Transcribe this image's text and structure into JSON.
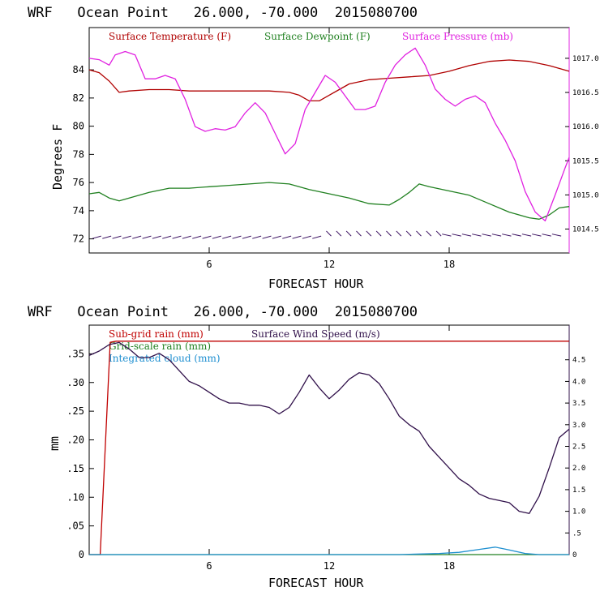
{
  "colors": {
    "temperature": "#b00000",
    "dewpoint": "#208020",
    "pressure": "#e020e0",
    "subgrid_rain": "#c00000",
    "gridscale_rain": "#208020",
    "cloud": "#1e8fd0",
    "wind": "#30104a",
    "barbs": "#3a1060"
  },
  "chart_data": [
    {
      "type": "line",
      "title": "WRF   Ocean Point   26.000, -70.000  2015080700",
      "xlabel": "FORECAST HOUR",
      "ylabel": "Degrees F",
      "xlim": [
        0,
        24
      ],
      "ylim": [
        71,
        87
      ],
      "xticks": [
        6,
        12,
        18
      ],
      "xtick_labels": [
        "6",
        "12",
        "18"
      ],
      "yticks": [
        72,
        74,
        76,
        78,
        80,
        82,
        84
      ],
      "ytick_labels": [
        "72",
        "74",
        "76",
        "78",
        "80",
        "82",
        "84"
      ],
      "y2lim": [
        1014.15,
        1017.45
      ],
      "y2ticks": [
        1014.5,
        1015.0,
        1015.5,
        1016.0,
        1016.5,
        1017.0
      ],
      "y2tick_labels": [
        "1014.5",
        "1015.0",
        "1015.5",
        "1016.0",
        "1016.5",
        "1017.0"
      ],
      "legend_position": "top",
      "series": [
        {
          "key": "temperature",
          "name": "Surface Temperature (F)",
          "axis": "left",
          "x": [
            0,
            0.5,
            1.0,
            1.5,
            2.0,
            3.0,
            4.0,
            5.0,
            6.0,
            7.0,
            8.0,
            9.0,
            10.0,
            10.5,
            11.0,
            11.5,
            12.0,
            12.5,
            13.0,
            14.0,
            15.0,
            16.0,
            17.0,
            18.0,
            19.0,
            20.0,
            21.0,
            22.0,
            23.0,
            24.0
          ],
          "y": [
            84.0,
            83.8,
            83.2,
            82.4,
            82.5,
            82.6,
            82.6,
            82.5,
            82.5,
            82.5,
            82.5,
            82.5,
            82.4,
            82.2,
            81.8,
            81.8,
            82.2,
            82.6,
            83.0,
            83.3,
            83.4,
            83.5,
            83.6,
            83.9,
            84.3,
            84.6,
            84.7,
            84.6,
            84.3,
            83.9
          ]
        },
        {
          "key": "dewpoint",
          "name": "Surface Dewpoint (F)",
          "axis": "left",
          "x": [
            0,
            0.5,
            1.0,
            1.5,
            2.0,
            3.0,
            4.0,
            5.0,
            6.0,
            7.0,
            8.0,
            9.0,
            10.0,
            11.0,
            12.0,
            13.0,
            14.0,
            15.0,
            15.5,
            16.0,
            16.5,
            17.0,
            18.0,
            19.0,
            20.0,
            21.0,
            22.0,
            22.5,
            23.0,
            23.5,
            24.0
          ],
          "y": [
            75.2,
            75.3,
            74.9,
            74.7,
            74.9,
            75.3,
            75.6,
            75.6,
            75.7,
            75.8,
            75.9,
            76.0,
            75.9,
            75.5,
            75.2,
            74.9,
            74.5,
            74.4,
            74.8,
            75.3,
            75.9,
            75.7,
            75.4,
            75.1,
            74.5,
            73.9,
            73.5,
            73.4,
            73.7,
            74.2,
            74.3
          ]
        },
        {
          "key": "pressure",
          "name": "Surface Pressure (mb)",
          "axis": "right",
          "x": [
            0,
            0.5,
            1.0,
            1.3,
            1.8,
            2.3,
            2.8,
            3.3,
            3.8,
            4.3,
            4.8,
            5.3,
            5.8,
            6.3,
            6.8,
            7.3,
            7.8,
            8.3,
            8.8,
            9.3,
            9.8,
            10.3,
            10.8,
            11.3,
            11.8,
            12.3,
            12.8,
            13.3,
            13.8,
            14.3,
            14.8,
            15.3,
            15.8,
            16.3,
            16.8,
            17.3,
            17.8,
            18.3,
            18.8,
            19.3,
            19.8,
            20.3,
            20.8,
            21.3,
            21.8,
            22.3,
            22.8,
            23.3,
            23.8,
            24.0
          ],
          "y": [
            1017.0,
            1016.98,
            1016.9,
            1017.05,
            1017.1,
            1017.05,
            1016.7,
            1016.7,
            1016.75,
            1016.7,
            1016.4,
            1016.0,
            1015.93,
            1015.97,
            1015.95,
            1016.0,
            1016.2,
            1016.35,
            1016.2,
            1015.9,
            1015.6,
            1015.75,
            1016.25,
            1016.5,
            1016.75,
            1016.65,
            1016.45,
            1016.25,
            1016.25,
            1016.3,
            1016.65,
            1016.9,
            1017.05,
            1017.15,
            1016.9,
            1016.55,
            1016.4,
            1016.3,
            1016.4,
            1016.45,
            1016.35,
            1016.05,
            1015.8,
            1015.5,
            1015.05,
            1014.75,
            1014.62,
            1015.0,
            1015.4,
            1015.55
          ]
        }
      ],
      "wind_barbs_y": 72.2
    },
    {
      "type": "line",
      "title": "WRF   Ocean Point   26.000, -70.000  2015080700",
      "xlabel": "FORECAST HOUR",
      "ylabel": "mm",
      "xlim": [
        0,
        24
      ],
      "ylim": [
        0,
        0.4
      ],
      "xticks": [
        6,
        12,
        18
      ],
      "xtick_labels": [
        "6",
        "12",
        "18"
      ],
      "yticks": [
        0,
        0.05,
        0.1,
        0.15,
        0.2,
        0.25,
        0.3,
        0.35
      ],
      "ytick_labels": [
        "0",
        ".05",
        ".10",
        ".15",
        ".20",
        ".25",
        ".30",
        ".35"
      ],
      "y2lim": [
        0,
        5.3
      ],
      "y2ticks": [
        0,
        0.5,
        1.0,
        1.5,
        2.0,
        2.5,
        3.0,
        3.5,
        4.0,
        4.5
      ],
      "y2tick_labels": [
        "0",
        ".5",
        "1.0",
        "1.5",
        "2.0",
        "2.5",
        "3.0",
        "3.5",
        "4.0",
        "4.5"
      ],
      "legend_position": "top-left",
      "series": [
        {
          "key": "subgrid_rain",
          "name": "Sub-grid rain (mm)",
          "axis": "left",
          "x": [
            0,
            0.55,
            1.05,
            1.35,
            2.0,
            24.0
          ],
          "y": [
            0,
            0,
            0.37,
            0.372,
            0.372,
            0.372
          ]
        },
        {
          "key": "gridscale_rain",
          "name": "Grid-scale rain (mm)",
          "axis": "left",
          "x": [
            0,
            24
          ],
          "y": [
            0,
            0
          ]
        },
        {
          "key": "cloud",
          "name": "Integrated cloud (mm)",
          "axis": "left",
          "x": [
            0,
            15.5,
            16.5,
            17.5,
            18.5,
            19.5,
            20.3,
            21.0,
            21.8,
            22.5,
            24.0
          ],
          "y": [
            0,
            0,
            0.001,
            0.002,
            0.004,
            0.009,
            0.013,
            0.008,
            0.002,
            0,
            0
          ]
        },
        {
          "key": "wind",
          "name": "Surface Wind Speed (m/s)",
          "axis": "right",
          "x": [
            0,
            0.5,
            1.0,
            1.5,
            2.0,
            2.5,
            3.0,
            3.5,
            4.0,
            4.5,
            5.0,
            5.5,
            6.0,
            6.5,
            7.0,
            7.5,
            8.0,
            8.5,
            9.0,
            9.5,
            10.0,
            10.5,
            11.0,
            11.5,
            12.0,
            12.5,
            13.0,
            13.5,
            14.0,
            14.5,
            15.0,
            15.5,
            16.0,
            16.5,
            17.0,
            17.5,
            18.0,
            18.5,
            19.0,
            19.5,
            20.0,
            20.5,
            21.0,
            21.5,
            22.0,
            22.5,
            23.0,
            23.5,
            24.0
          ],
          "y": [
            4.6,
            4.7,
            4.85,
            4.9,
            4.75,
            4.55,
            4.55,
            4.65,
            4.5,
            4.25,
            4.0,
            3.9,
            3.75,
            3.6,
            3.5,
            3.5,
            3.45,
            3.45,
            3.4,
            3.25,
            3.4,
            3.75,
            4.15,
            3.85,
            3.6,
            3.8,
            4.05,
            4.2,
            4.15,
            3.95,
            3.6,
            3.2,
            3.0,
            2.85,
            2.5,
            2.25,
            2.0,
            1.75,
            1.6,
            1.4,
            1.3,
            1.25,
            1.2,
            1.0,
            0.95,
            1.35,
            2.0,
            2.7,
            2.9
          ]
        }
      ]
    }
  ]
}
